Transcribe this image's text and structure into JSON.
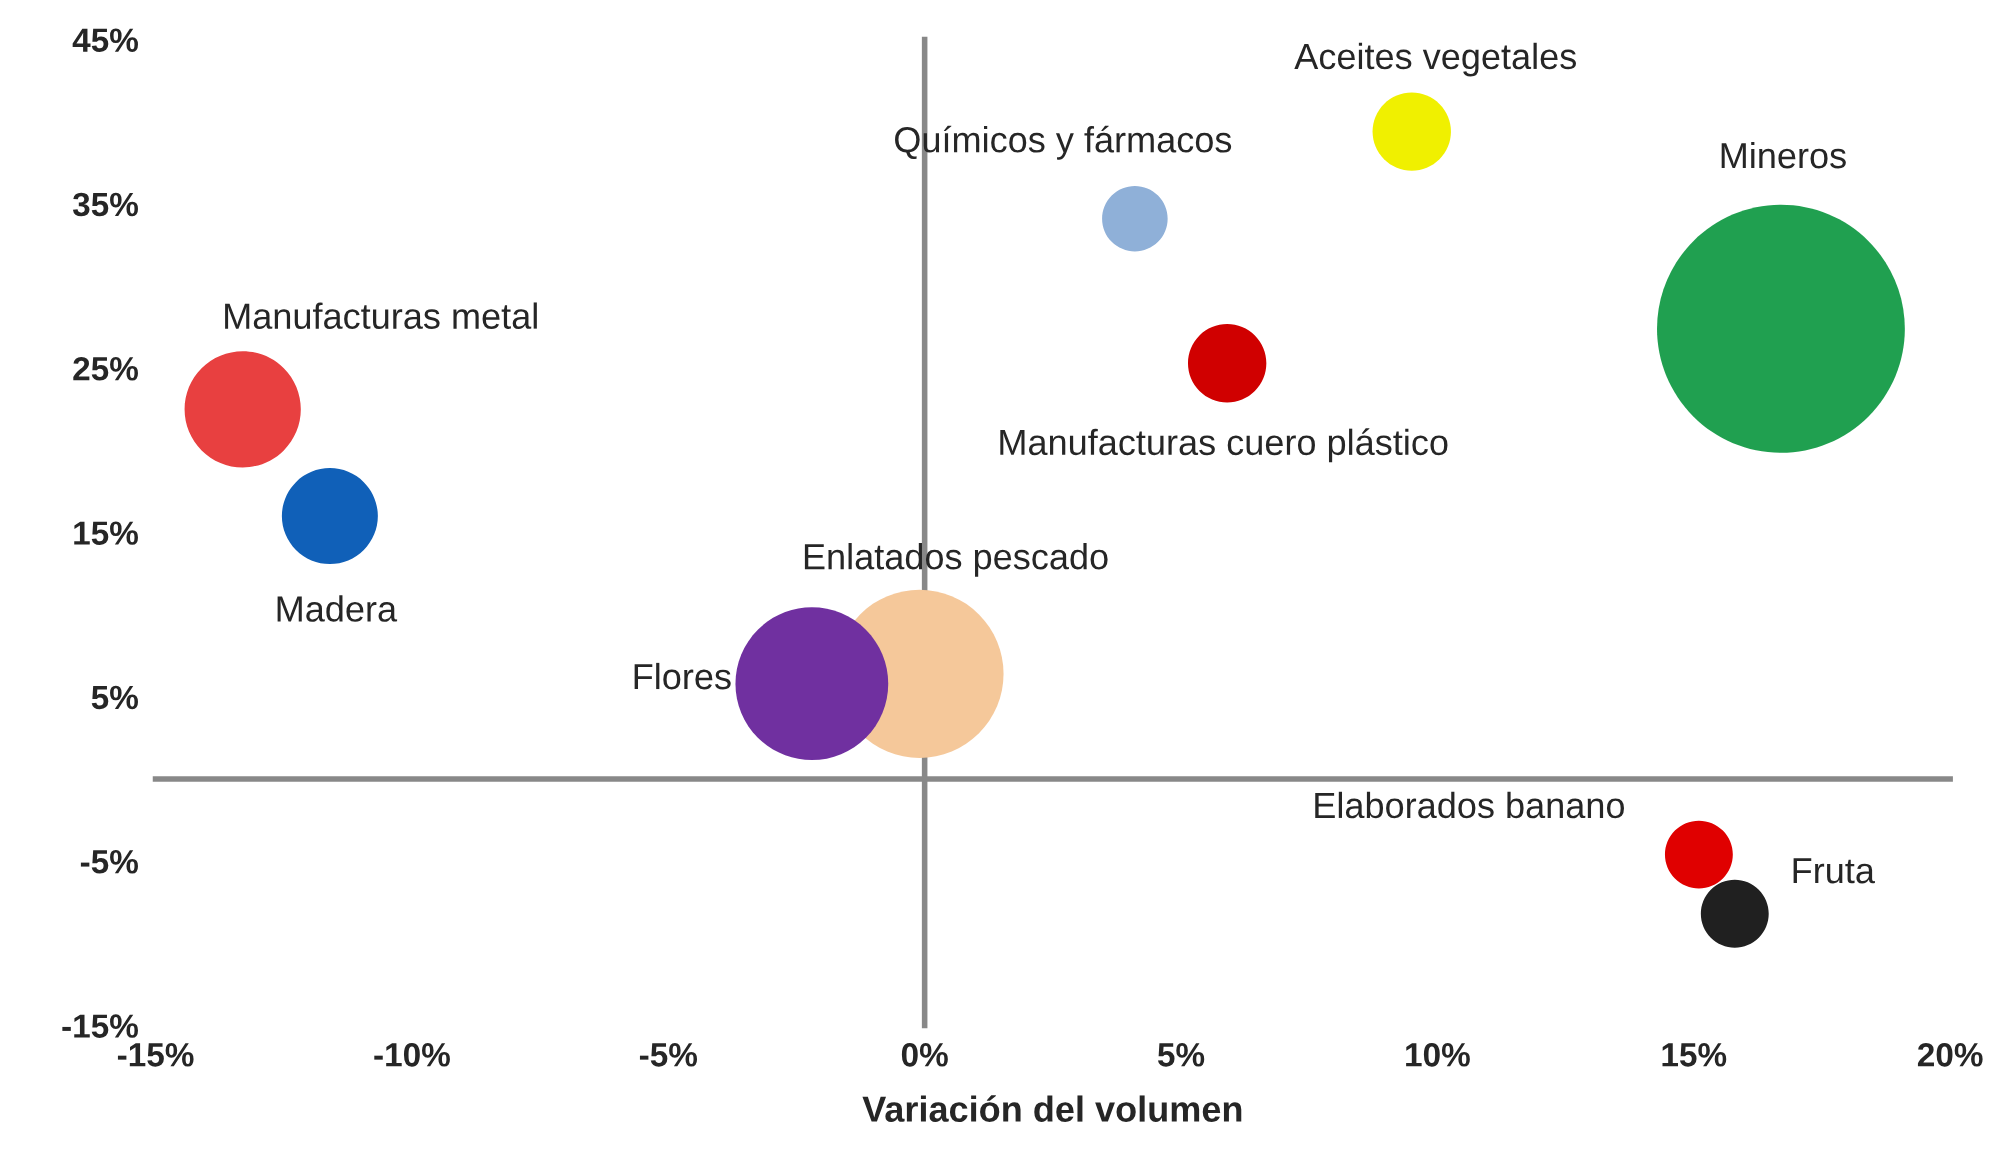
{
  "chart_data": {
    "type": "bubble",
    "xlabel": "Variación del volumen",
    "x": [
      -13.3,
      -11.6,
      -0.1,
      -2.2,
      4.1,
      5.9,
      9.5,
      16.7,
      15.1,
      15.8
    ],
    "values": [
      22.5,
      16.0,
      6.4,
      5.8,
      34.1,
      25.3,
      39.4,
      27.4,
      -4.6,
      -8.2
    ],
    "sizes": [
      0.22,
      0.15,
      0.46,
      0.38,
      0.07,
      0.1,
      0.1,
      1,
      0.075,
      0.075
    ],
    "colors": [
      "#e84040",
      "#1060b8",
      "#f5c89a",
      "#7030a0",
      "#8fb0d8",
      "#d00000",
      "#f0f000",
      "#20a050",
      "#e00000",
      "#202020"
    ],
    "xlim": [
      -15,
      20
    ],
    "ylim": [
      -15,
      45
    ],
    "xticks": [
      {
        "value": -15,
        "label": "-15%"
      },
      {
        "value": -10,
        "label": "-10%"
      },
      {
        "value": -5,
        "label": "-5%"
      },
      {
        "value": 0,
        "label": "0%"
      },
      {
        "value": 5,
        "label": "5%"
      },
      {
        "value": 10,
        "label": "10%"
      },
      {
        "value": 15,
        "label": "15%"
      },
      {
        "value": 20,
        "label": "20%"
      }
    ],
    "yticks": [
      {
        "value": -15,
        "label": "-15%"
      },
      {
        "value": -5,
        "label": "-5%"
      },
      {
        "value": 5,
        "label": "5%"
      },
      {
        "value": 15,
        "label": "15%"
      },
      {
        "value": 25,
        "label": "25%"
      },
      {
        "value": 35,
        "label": "35%"
      },
      {
        "value": 45,
        "label": "45%"
      }
    ],
    "legend": false,
    "annotations": [
      "Manufacturas metal",
      "Madera",
      "Enlatados pescado",
      "Flores",
      "Químicos y fármacos",
      "Manufacturas cuero plástico",
      "Aceites vegetales",
      "Mineros",
      "Elaborados banano",
      "Fruta"
    ]
  }
}
